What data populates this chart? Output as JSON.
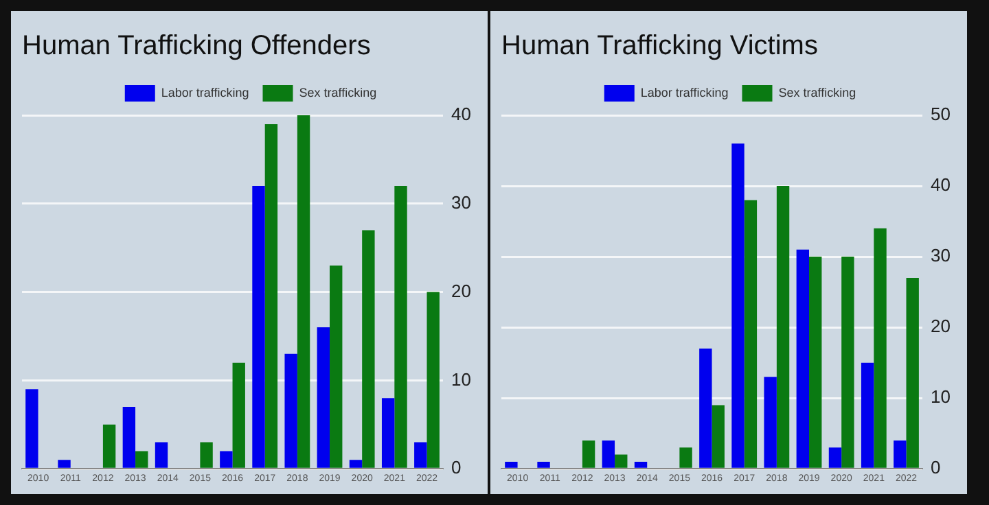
{
  "chart_data": [
    {
      "type": "bar",
      "title": "Human Trafficking Offenders",
      "categories": [
        "2010",
        "2011",
        "2012",
        "2013",
        "2014",
        "2015",
        "2016",
        "2017",
        "2018",
        "2019",
        "2020",
        "2021",
        "2022"
      ],
      "series": [
        {
          "name": "Labor trafficking",
          "color": "#0000ee",
          "values": [
            9,
            1,
            0,
            7,
            3,
            0,
            2,
            32,
            13,
            16,
            1,
            8,
            3
          ]
        },
        {
          "name": "Sex trafficking",
          "color": "#0a7a12",
          "values": [
            0,
            0,
            5,
            2,
            0,
            3,
            12,
            39,
            40,
            23,
            27,
            32,
            20
          ]
        }
      ],
      "ylim": [
        0,
        40
      ],
      "yticks": [
        0,
        10,
        20,
        30,
        40
      ],
      "grid": "y",
      "legend": "top"
    },
    {
      "type": "bar",
      "title": "Human Trafficking Victims",
      "categories": [
        "2010",
        "2011",
        "2012",
        "2013",
        "2014",
        "2015",
        "2016",
        "2017",
        "2018",
        "2019",
        "2020",
        "2021",
        "2022"
      ],
      "series": [
        {
          "name": "Labor trafficking",
          "color": "#0000ee",
          "values": [
            1,
            1,
            0,
            4,
            1,
            0,
            17,
            46,
            13,
            31,
            3,
            15,
            4
          ]
        },
        {
          "name": "Sex trafficking",
          "color": "#0a7a12",
          "values": [
            0,
            0,
            4,
            2,
            0,
            3,
            9,
            38,
            40,
            30,
            30,
            34,
            27
          ]
        }
      ],
      "ylim": [
        0,
        50
      ],
      "yticks": [
        0,
        10,
        20,
        30,
        40,
        50
      ],
      "grid": "y",
      "legend": "top"
    }
  ]
}
